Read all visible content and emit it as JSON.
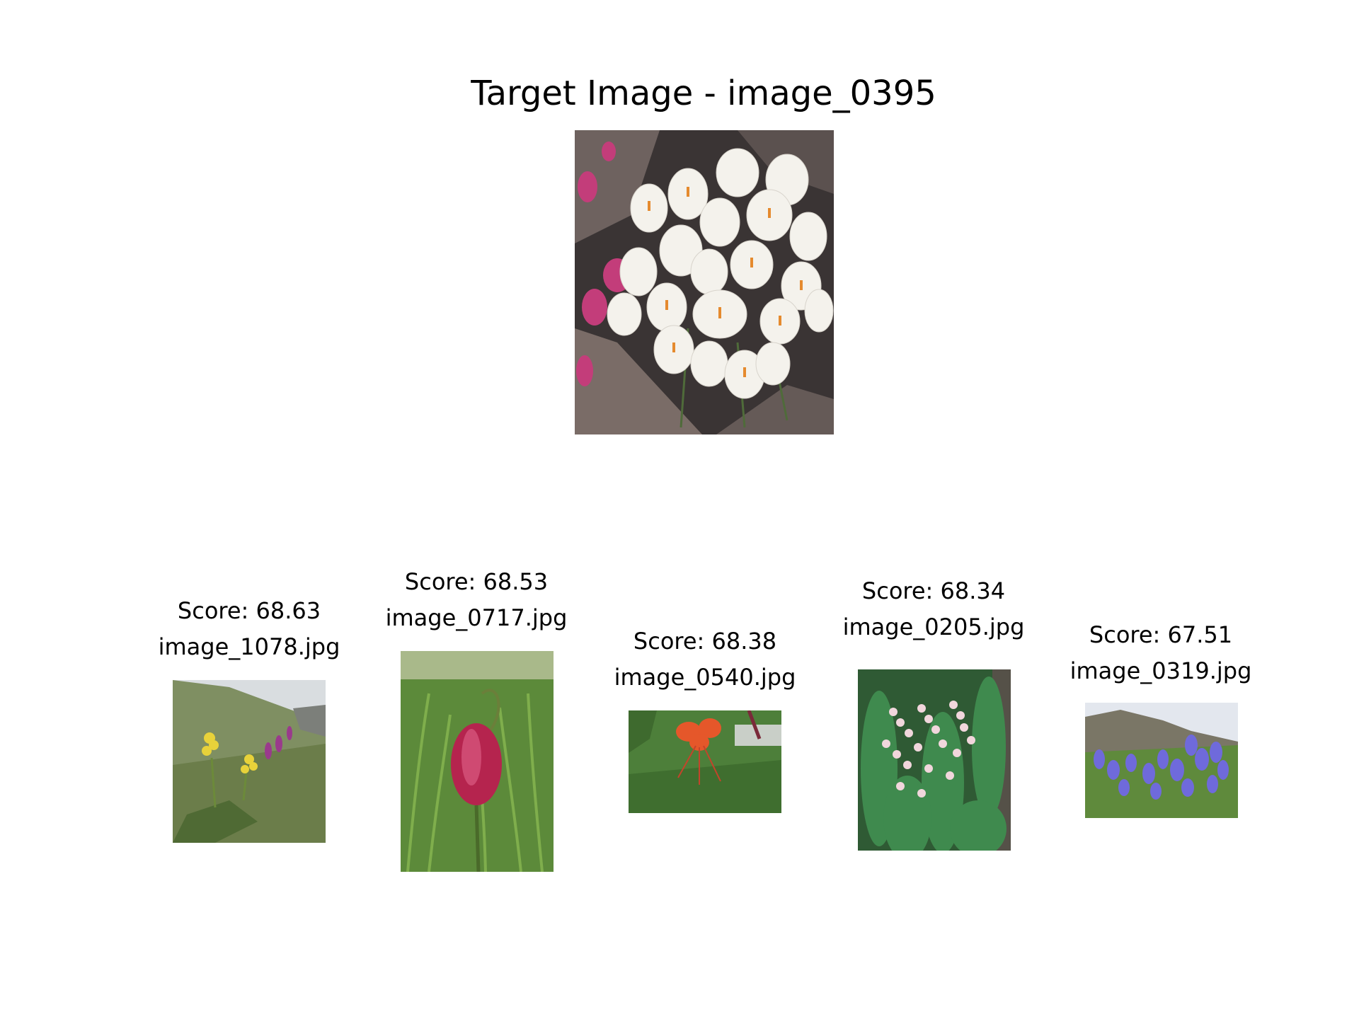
{
  "title": "Target Image - image_0395",
  "target": {
    "icon": "white-crocus-photo"
  },
  "results": [
    {
      "score": "Score: 68.63",
      "filename": "image_1078.jpg",
      "icon": "cowslip-meadow-photo"
    },
    {
      "score": "Score: 68.53",
      "filename": "image_0717.jpg",
      "icon": "fritillary-photo"
    },
    {
      "score": "Score: 68.38",
      "filename": "image_0540.jpg",
      "icon": "tiger-lily-photo"
    },
    {
      "score": "Score: 68.34",
      "filename": "image_0205.jpg",
      "icon": "lily-of-the-valley-photo"
    },
    {
      "score": "Score: 67.51",
      "filename": "image_0319.jpg",
      "icon": "bluebell-photo"
    }
  ]
}
